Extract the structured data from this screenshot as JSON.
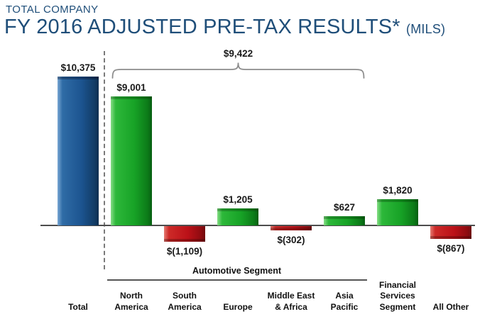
{
  "header": {
    "eyebrow": "TOTAL COMPANY",
    "title": "FY 2016 ADJUSTED PRE-TAX RESULTS*",
    "units": "(MILS)"
  },
  "chart_data": {
    "type": "bar",
    "title": "FY 2016 ADJUSTED PRE-TAX RESULTS* (MILS)",
    "currency_unit": "$ millions",
    "baseline": 0,
    "categories": [
      "Total",
      "North America",
      "South America",
      "Europe",
      "Middle East & Africa",
      "Asia Pacific",
      "Financial Services Segment",
      "All Other"
    ],
    "category_lines": [
      [
        "Total"
      ],
      [
        "North",
        "America"
      ],
      [
        "South",
        "America"
      ],
      [
        "Europe"
      ],
      [
        "Middle East",
        "& Africa"
      ],
      [
        "Asia",
        "Pacific"
      ],
      [
        "Financial",
        "Services",
        "Segment"
      ],
      [
        "All Other"
      ]
    ],
    "values": [
      10375,
      9001,
      -1109,
      1205,
      -302,
      627,
      1820,
      -867
    ],
    "value_labels": [
      "$10,375",
      "$9,001",
      "$(1,109)",
      "$1,205",
      "$(302)",
      "$627",
      "$1,820",
      "$(867)"
    ],
    "bracket": {
      "label": "$9,422",
      "value": 9422,
      "from": "North America",
      "to": "Asia Pacific"
    },
    "group": {
      "label": "Automotive Segment",
      "members": [
        "North America",
        "South America",
        "Europe",
        "Middle East & Africa",
        "Asia Pacific"
      ]
    },
    "colors": {
      "total_bar": "#1c548e",
      "positive_bar": "#18a226",
      "negative_bar": "#bf1218",
      "title_text": "#1f4e79",
      "axis": "#4d4d4d"
    },
    "legend": "none",
    "grid": false
  }
}
